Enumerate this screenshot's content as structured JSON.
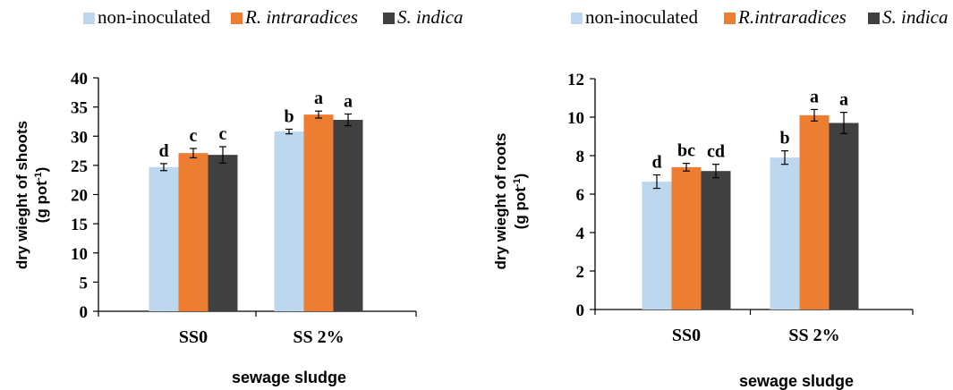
{
  "colors": {
    "non_inoculated": "#bdd7ee",
    "r_intraradices": "#ed7d31",
    "s_indica": "#404040",
    "axis": "#000000"
  },
  "chart_data": [
    {
      "type": "bar",
      "legend": [
        {
          "text": "non-inoculated",
          "italic": false,
          "color_key": "non_inoculated"
        },
        {
          "text": "R. intraradices",
          "italic": true,
          "color_key": "r_intraradices"
        },
        {
          "text": "S. indica",
          "italic": true,
          "color_key": "s_indica"
        }
      ],
      "legend_placement": "top",
      "grid": false,
      "xlabel": "sewage sludge",
      "ylabel_line1": "dry wieght of shoots",
      "ylabel_line2": "(g pot",
      "ylabel_sup": "-1",
      "ylabel_close": ")",
      "ylim": [
        0,
        40
      ],
      "yticks": [
        "0",
        "5",
        "10",
        "15",
        "20",
        "25",
        "30",
        "35",
        "40"
      ],
      "categories": [
        "SS0",
        "SS 2%"
      ],
      "series": [
        {
          "name": "non-inoculated",
          "color_key": "non_inoculated",
          "values": [
            24.7,
            30.8
          ],
          "errors": [
            0.6,
            0.4
          ],
          "letters": [
            "d",
            "b"
          ]
        },
        {
          "name": "R. intraradices",
          "color_key": "r_intraradices",
          "values": [
            27.1,
            33.7
          ],
          "errors": [
            0.8,
            0.6
          ],
          "letters": [
            "c",
            "a"
          ]
        },
        {
          "name": "S. indica",
          "color_key": "s_indica",
          "values": [
            26.8,
            32.8
          ],
          "errors": [
            1.4,
            1.0
          ],
          "letters": [
            "c",
            "a"
          ]
        }
      ]
    },
    {
      "type": "bar",
      "legend": [
        {
          "text": "non-inoculated",
          "italic": false,
          "color_key": "non_inoculated"
        },
        {
          "text": "R.intraradices",
          "italic": true,
          "color_key": "r_intraradices"
        },
        {
          "text": "S. indica",
          "italic": true,
          "color_key": "s_indica"
        }
      ],
      "legend_placement": "top",
      "grid": false,
      "xlabel": "sewage sludge",
      "ylabel_line1": "dry wieght of roots",
      "ylabel_line2": "(g pot",
      "ylabel_sup": "-1",
      "ylabel_close": ")",
      "ylim": [
        0,
        12
      ],
      "yticks": [
        "0",
        "2",
        "4",
        "6",
        "8",
        "10",
        "12"
      ],
      "categories": [
        "SS0",
        "SS 2%"
      ],
      "series": [
        {
          "name": "non-inoculated",
          "color_key": "non_inoculated",
          "values": [
            6.65,
            7.9
          ],
          "errors": [
            0.35,
            0.35
          ],
          "letters": [
            "d",
            "b"
          ]
        },
        {
          "name": "R.intraradices",
          "color_key": "r_intraradices",
          "values": [
            7.4,
            10.1
          ],
          "errors": [
            0.2,
            0.3
          ],
          "letters": [
            "bc",
            "a"
          ]
        },
        {
          "name": "S. indica",
          "color_key": "s_indica",
          "values": [
            7.2,
            9.7
          ],
          "errors": [
            0.35,
            0.55
          ],
          "letters": [
            "cd",
            "a"
          ]
        }
      ]
    }
  ]
}
